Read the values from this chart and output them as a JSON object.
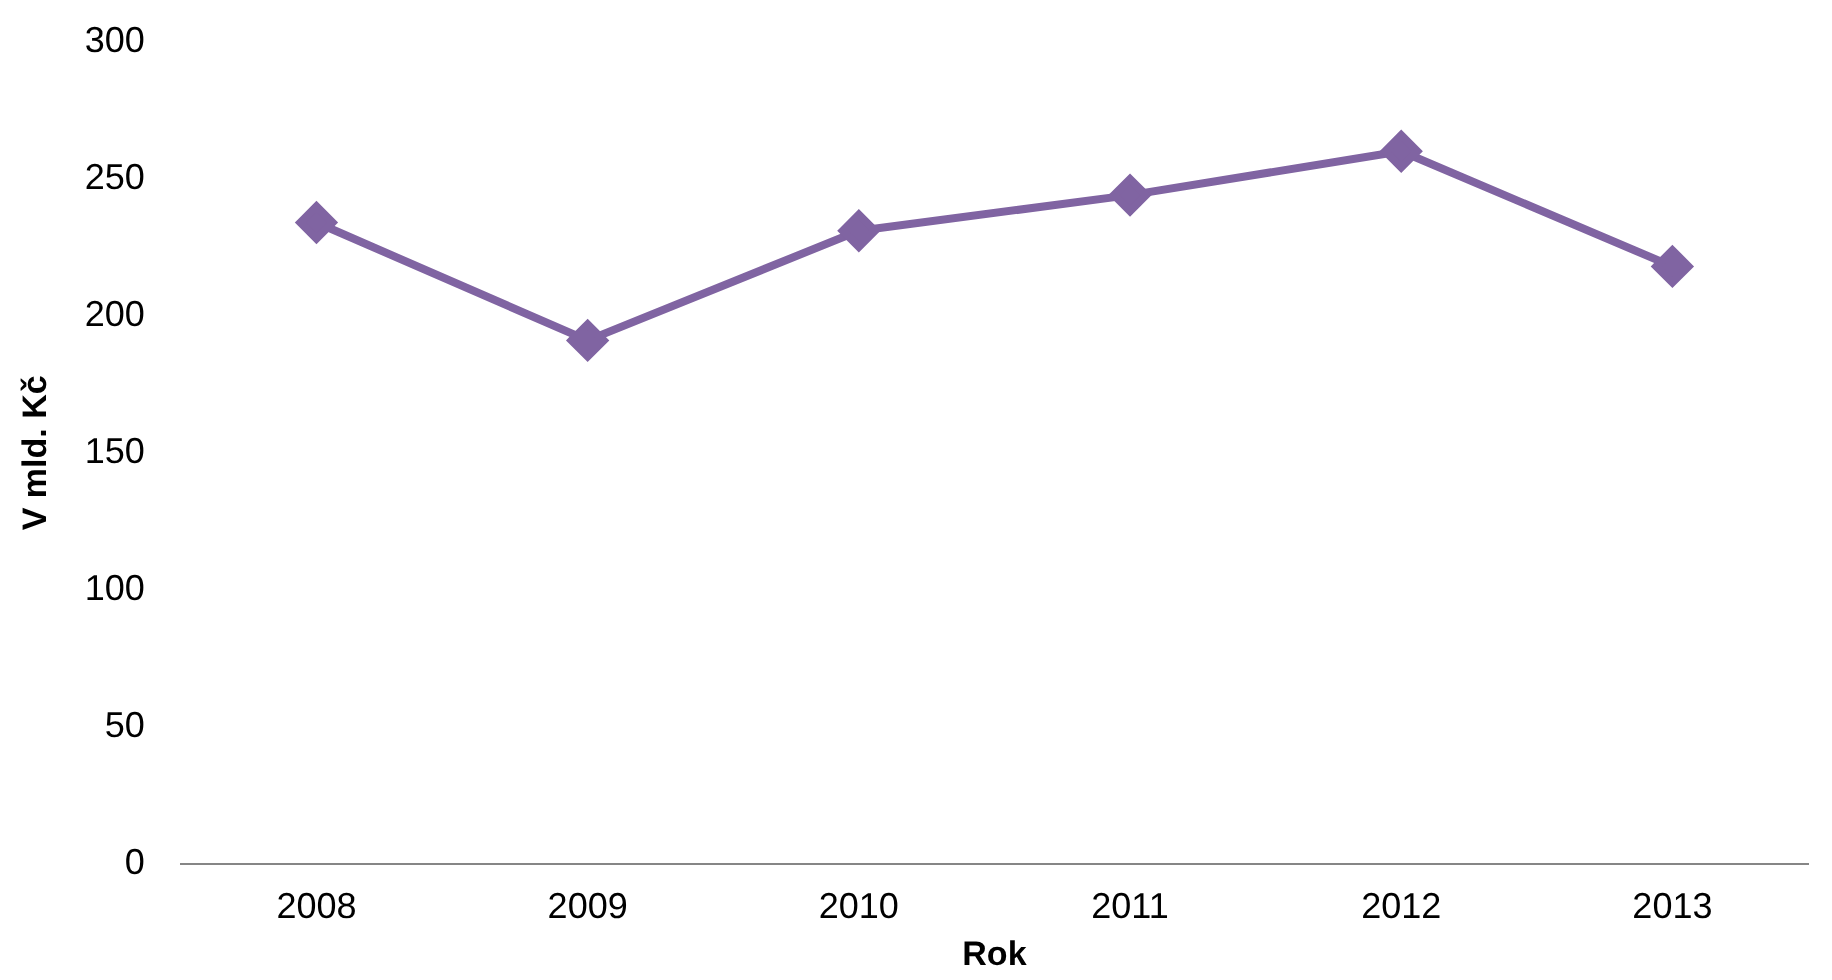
{
  "chart_data": {
    "type": "line",
    "xlabel": "Rok",
    "ylabel": "V mld. Kč",
    "categories": [
      "2008",
      "2009",
      "2010",
      "2011",
      "2012",
      "2013"
    ],
    "series": [
      {
        "color": "#8064a2",
        "values": [
          234,
          191,
          231,
          244,
          260,
          218
        ]
      }
    ],
    "ylim": [
      0,
      300
    ],
    "yticks": [
      0,
      50,
      100,
      150,
      200,
      250,
      300
    ],
    "grid": false,
    "legend": false,
    "marker": "diamond",
    "line_style": "solid"
  }
}
